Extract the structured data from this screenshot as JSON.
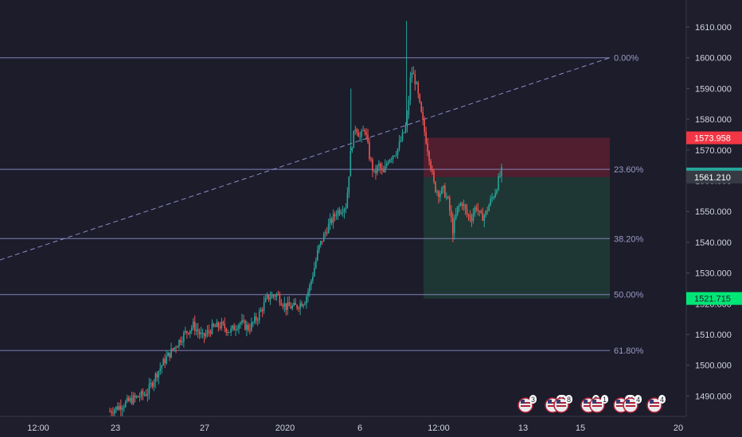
{
  "colors": {
    "background": "#1e1e2d",
    "plot_bg": "#1c1c2b",
    "up": "#26a69a",
    "down": "#ef5350",
    "fib_line": "#8c8cc8",
    "fib_label": "#9b9bc4",
    "trend_line": "#8c8cc8",
    "stop_zone": "rgba(178,34,52,0.35)",
    "target_zone": "rgba(38,166,91,0.20)",
    "axis_text": "#d1d4dc",
    "tag_red": "#f23645",
    "tag_teal": "#26a69a",
    "tag_dark": "#363a45",
    "tag_green": "#00e676"
  },
  "chart_data": {
    "type": "candlestick",
    "x_ticks": [
      "12:00",
      "23",
      "27",
      "2020",
      "6",
      "12:00",
      "13",
      "15",
      "20"
    ],
    "y_ticks": [
      "1610.000",
      "1600.000",
      "1590.000",
      "1580.000",
      "1570.000",
      "1560.000",
      "1550.000",
      "1540.000",
      "1530.000",
      "1520.000",
      "1510.000",
      "1500.000",
      "1490.000"
    ],
    "y_tick_values": [
      1610,
      1600,
      1590,
      1580,
      1570,
      1560,
      1550,
      1540,
      1530,
      1520,
      1510,
      1500,
      1490
    ],
    "ylim": [
      1487,
      1619
    ],
    "fib_levels": [
      {
        "label": "0.00%",
        "price": 1600.0
      },
      {
        "label": "23.60%",
        "price": 1563.7
      },
      {
        "label": "38.20%",
        "price": 1541.2
      },
      {
        "label": "50.00%",
        "price": 1523.0
      },
      {
        "label": "61.80%",
        "price": 1504.8
      }
    ],
    "price_tags": [
      {
        "label": "1573.958",
        "price": 1573.958,
        "style": "red"
      },
      {
        "label": "1562.212",
        "price": 1562.212,
        "style": "teal"
      },
      {
        "label": "1561.210",
        "price": 1561.21,
        "style": "dark"
      },
      {
        "label": "1521.715",
        "price": 1521.715,
        "style": "green"
      }
    ],
    "stop_zone": {
      "from": 1561.2,
      "to": 1574.0
    },
    "target_zone": {
      "from": 1521.7,
      "to": 1561.2
    },
    "path": [
      [
        0.0,
        1485
      ],
      [
        0.05,
        1489
      ],
      [
        0.08,
        1491
      ],
      [
        0.1,
        1497
      ],
      [
        0.12,
        1502
      ],
      [
        0.14,
        1506
      ],
      [
        0.16,
        1510
      ],
      [
        0.18,
        1513
      ],
      [
        0.2,
        1509
      ],
      [
        0.22,
        1512
      ],
      [
        0.24,
        1513
      ],
      [
        0.26,
        1511
      ],
      [
        0.28,
        1514
      ],
      [
        0.3,
        1512
      ],
      [
        0.32,
        1516
      ],
      [
        0.34,
        1522
      ],
      [
        0.36,
        1523
      ],
      [
        0.38,
        1519
      ],
      [
        0.4,
        1519
      ],
      [
        0.42,
        1521
      ],
      [
        0.43,
        1525
      ],
      [
        0.44,
        1531
      ],
      [
        0.45,
        1538
      ],
      [
        0.47,
        1545
      ],
      [
        0.49,
        1550
      ],
      [
        0.51,
        1552
      ],
      [
        0.52,
        1570
      ],
      [
        0.53,
        1578
      ],
      [
        0.54,
        1574
      ],
      [
        0.55,
        1577
      ],
      [
        0.56,
        1568
      ],
      [
        0.57,
        1562
      ],
      [
        0.58,
        1565
      ],
      [
        0.59,
        1562
      ],
      [
        0.6,
        1567
      ],
      [
        0.62,
        1570
      ],
      [
        0.63,
        1574
      ],
      [
        0.64,
        1578
      ],
      [
        0.65,
        1596
      ],
      [
        0.66,
        1592
      ],
      [
        0.67,
        1583
      ],
      [
        0.68,
        1575
      ],
      [
        0.69,
        1567
      ],
      [
        0.7,
        1558
      ],
      [
        0.71,
        1556
      ],
      [
        0.72,
        1557
      ],
      [
        0.73,
        1553
      ],
      [
        0.74,
        1544
      ],
      [
        0.75,
        1551
      ],
      [
        0.76,
        1553
      ],
      [
        0.77,
        1549
      ],
      [
        0.78,
        1548
      ],
      [
        0.79,
        1552
      ],
      [
        0.8,
        1548
      ],
      [
        0.81,
        1549
      ],
      [
        0.82,
        1553
      ],
      [
        0.83,
        1556
      ],
      [
        0.84,
        1561
      ],
      [
        0.845,
        1563
      ]
    ],
    "wicks": [
      {
        "t": 0.64,
        "high": 1612
      },
      {
        "t": 0.52,
        "high": 1590
      },
      {
        "t": 0.74,
        "low": 1540
      }
    ]
  },
  "event_icons": [
    {
      "count": "3"
    },
    {
      "count": "11"
    },
    {
      "count": "8"
    },
    {
      "count": "5"
    },
    {
      "count": "1"
    },
    {
      "count": "41"
    },
    {
      "count": "4"
    },
    {
      "count": "4"
    }
  ]
}
